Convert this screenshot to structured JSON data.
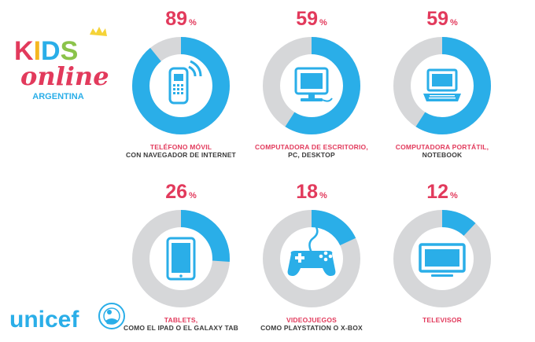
{
  "logo": {
    "line1": "KIDS",
    "line2": "online",
    "line3": "ARGENTINA",
    "unicef": "unicef"
  },
  "chart_data": {
    "type": "pie",
    "unit": "%",
    "colors": {
      "filled": "#2aaee8",
      "empty": "#d6d7d9",
      "percent": "#e23a5c"
    },
    "items": [
      {
        "label_red": "TELÉFONO MÓVIL",
        "label_dark": "CON NAVEGADOR DE INTERNET",
        "value": 89,
        "icon": "mobile-phone-icon"
      },
      {
        "label_red": "COMPUTADORA DE ESCRITORIO,",
        "label_dark": "PC, DESKTOP",
        "value": 59,
        "icon": "desktop-computer-icon"
      },
      {
        "label_red": "COMPUTADORA PORTÁTIL,",
        "label_dark": "NOTEBOOK",
        "value": 59,
        "icon": "laptop-icon"
      },
      {
        "label_red": "TABLETS,",
        "label_dark": "COMO EL IPAD O EL GALAXY TAB",
        "value": 26,
        "icon": "tablet-icon"
      },
      {
        "label_red": "VIDEOJUEGOS",
        "label_dark": "COMO PLAYSTATION O X-BOX",
        "value": 18,
        "icon": "gamepad-icon"
      },
      {
        "label_red": "TELEVISOR",
        "label_dark": "",
        "value": 12,
        "icon": "tv-icon"
      }
    ]
  }
}
